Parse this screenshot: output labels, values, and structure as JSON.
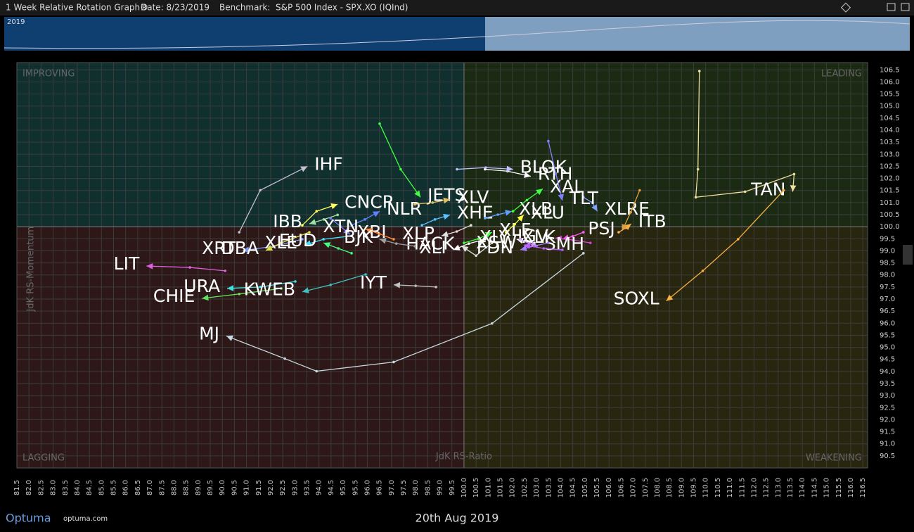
{
  "header": {
    "title": "1 Week Relative Rotation Graph®",
    "date": "Date: 8/23/2019",
    "benchmark": "Benchmark:  S&P 500 Index - SPX.XO (IQInd)",
    "timeline_label": "2019"
  },
  "footer": {
    "brand": "Optuma",
    "site": "optuma.com"
  },
  "chart_data": {
    "type": "rrg",
    "x_label": "JdK RS-Ratio",
    "y_label": "JdK RS-Momentum",
    "quadrants": {
      "top_left": "IMPROVING",
      "top_right": "LEADING",
      "bottom_left": "LAGGING",
      "bottom_right": "WEAKENING"
    },
    "date_label": "20th Aug 2019",
    "center": [
      100,
      100
    ],
    "xlim": [
      81.5,
      116.7
    ],
    "ylim": [
      90.0,
      106.8
    ],
    "grid": true,
    "xticks": [
      81.5,
      {
        "value": 82,
        "label": "82.0"
      },
      82.5,
      {
        "value": 83,
        "label": "83.0"
      },
      83.5,
      {
        "value": 84,
        "label": "84.0"
      },
      84.5,
      {
        "value": 85,
        "label": "85.0"
      },
      85.5,
      {
        "value": 86,
        "label": "86.0"
      },
      86.5,
      {
        "value": 87,
        "label": "87.0"
      },
      87.5,
      {
        "value": 88,
        "label": "88.0"
      },
      88.5,
      {
        "value": 89,
        "label": "89.0"
      },
      89.5,
      {
        "value": 90,
        "label": "90.0"
      },
      90.5,
      {
        "value": 91,
        "label": "91.0"
      },
      91.5,
      {
        "value": 92,
        "label": "92.0"
      },
      92.5,
      {
        "value": 93,
        "label": "93.0"
      },
      93.5,
      {
        "value": 94,
        "label": "94.0"
      },
      94.5,
      {
        "value": 95,
        "label": "95.0"
      },
      95.5,
      {
        "value": 96,
        "label": "96.0"
      },
      96.5,
      {
        "value": 97,
        "label": "97.0"
      },
      97.5,
      {
        "value": 98,
        "label": "98.0"
      },
      98.5,
      {
        "value": 99,
        "label": "99.0"
      },
      99.5,
      {
        "value": 100,
        "label": "100.0"
      },
      100.5,
      {
        "value": 101,
        "label": "101.0"
      },
      101.5,
      {
        "value": 102,
        "label": "102.0"
      },
      102.5,
      {
        "value": 103,
        "label": "103.0"
      },
      103.5,
      {
        "value": 104,
        "label": "104.0"
      },
      104.5,
      {
        "value": 105,
        "label": "105.0"
      },
      105.5,
      {
        "value": 106,
        "label": "106.0"
      },
      106.5,
      {
        "value": 107,
        "label": "107.0"
      },
      107.5,
      {
        "value": 108,
        "label": "108.0"
      },
      108.5,
      {
        "value": 109,
        "label": "109.0"
      },
      109.5,
      {
        "value": 110,
        "label": "110.0"
      },
      110.5,
      {
        "value": 111,
        "label": "111.0"
      },
      111.5,
      {
        "value": 112,
        "label": "112.0"
      },
      112.5,
      {
        "value": 113,
        "label": "113.0"
      },
      113.5,
      {
        "value": 114,
        "label": "114.0"
      },
      114.5,
      {
        "value": 115,
        "label": "115.0"
      },
      115.5,
      {
        "value": 116,
        "label": "116.0"
      },
      116.5
    ],
    "yticks": [
      90.5,
      {
        "value": 91,
        "label": "91.0"
      },
      91.5,
      {
        "value": 92,
        "label": "92.0"
      },
      92.5,
      {
        "value": 93,
        "label": "93.0"
      },
      93.5,
      {
        "value": 94,
        "label": "94.0"
      },
      94.5,
      {
        "value": 95,
        "label": "95.0"
      },
      95.5,
      {
        "value": 96,
        "label": "96.0"
      },
      96.5,
      {
        "value": 97,
        "label": "97.0"
      },
      97.5,
      {
        "value": 98,
        "label": "98.0"
      },
      98.5,
      {
        "value": 99,
        "label": "99.0"
      },
      99.5,
      {
        "value": 100,
        "label": "100.0"
      },
      100.5,
      {
        "value": 101,
        "label": "101.0"
      },
      101.5,
      {
        "value": 102,
        "label": "102.0"
      },
      102.5,
      {
        "value": 103,
        "label": "103.0"
      },
      103.5,
      {
        "value": 104,
        "label": "104.0"
      },
      104.5,
      {
        "value": 105,
        "label": "105.0"
      },
      105.5,
      {
        "value": 106,
        "label": "106.0"
      },
      106.5
    ],
    "series": [
      {
        "name": "TAN",
        "color": "#f0e0a0",
        "x": [
          109.74,
          109.68,
          109.59,
          111.63,
          113.66,
          113.6
        ],
        "y": [
          106.45,
          102.38,
          101.22,
          101.45,
          102.18,
          101.45
        ]
      },
      {
        "name": "SOXL",
        "color": "#f5b041",
        "x": [
          113.23,
          111.34,
          109.88,
          108.37
        ],
        "y": [
          101.51,
          99.48,
          98.17,
          96.92
        ]
      },
      {
        "name": "MJ",
        "color": "#c8d8e0",
        "x": [
          104.94,
          101.16,
          97.09,
          93.9,
          92.59,
          90.17
        ],
        "y": [
          98.9,
          95.99,
          94.39,
          94.01,
          94.53,
          95.47
        ]
      },
      {
        "name": "HACK",
        "color": "#e0e0e0",
        "x": [
          101.16,
          100.5,
          99.9
        ],
        "y": [
          99.33,
          98.8,
          99.2
        ]
      },
      {
        "name": "IHF",
        "color": "#c0c0d0",
        "x": [
          90.7,
          91.57,
          93.52
        ],
        "y": [
          99.77,
          101.51,
          102.5
        ]
      },
      {
        "name": "LIT",
        "color": "#e060e0",
        "x": [
          90.12,
          88.66,
          86.86
        ],
        "y": [
          98.17,
          98.31,
          98.37
        ]
      },
      {
        "name": "CHIE",
        "color": "#60e060",
        "x": [
          92.44,
          90.7,
          89.16
        ],
        "y": [
          97.44,
          97.21,
          97.03
        ]
      },
      {
        "name": "URA",
        "color": "#40e0e0",
        "x": [
          93.02,
          91.57,
          90.2
        ],
        "y": [
          97.73,
          97.5,
          97.44
        ]
      },
      {
        "name": "KWEB",
        "color": "#40c0c0",
        "x": [
          95.93,
          94.48,
          93.31
        ],
        "y": [
          98.02,
          97.59,
          97.3
        ]
      },
      {
        "name": "XRT",
        "color": "#80a0ff",
        "x": [
          93.31,
          92.15,
          90.84
        ],
        "y": [
          99.48,
          99.19,
          99.01
        ]
      },
      {
        "name": "DBA",
        "color": "#e0e040",
        "x": [
          93.6,
          92.44,
          91.8
        ],
        "y": [
          99.77,
          99.33,
          99.01
        ]
      },
      {
        "name": "XLE",
        "color": "#40e0ff",
        "x": [
          95.35,
          94.19,
          93.4
        ],
        "y": [
          99.62,
          99.48,
          99.24
        ]
      },
      {
        "name": "IBB",
        "color": "#a0e0a0",
        "x": [
          94.77,
          94.2,
          93.6
        ],
        "y": [
          100.49,
          100.3,
          100.12
        ]
      },
      {
        "name": "CNCR",
        "color": "#ffff60",
        "x": [
          93.31,
          93.9,
          94.77
        ],
        "y": [
          100.06,
          100.64,
          100.93
        ]
      },
      {
        "name": "XBI",
        "color": "#8080ff",
        "x": [
          94.48,
          94.9,
          95.29
        ],
        "y": [
          100.35,
          100.0,
          99.68
        ]
      },
      {
        "name": "NLR",
        "color": "#6080ff",
        "x": [
          95.35,
          95.9,
          96.51
        ],
        "y": [
          100.06,
          100.3,
          100.64
        ]
      },
      {
        "name": "EUD",
        "color": "#40ff80",
        "x": [
          95.35,
          94.8,
          94.19
        ],
        "y": [
          98.9,
          99.1,
          99.33
        ]
      },
      {
        "name": "XTN",
        "color": "#ff9040",
        "x": [
          97.09,
          96.5,
          95.93
        ],
        "y": [
          99.48,
          99.7,
          99.91
        ]
      },
      {
        "name": "BJK",
        "color": "#a0a0a0",
        "x": [
          97.97,
          97.2,
          96.51
        ],
        "y": [
          99.19,
          99.3,
          99.48
        ]
      },
      {
        "name": "IYT",
        "color": "#c0c0c0",
        "x": [
          98.84,
          98.0,
          97.09
        ],
        "y": [
          97.5,
          97.55,
          97.59
        ]
      },
      {
        "name": "JETS",
        "color": "#40ff40",
        "x": [
          96.51,
          97.38,
          98.2
        ],
        "y": [
          104.27,
          102.38,
          101.22
        ]
      },
      {
        "name": "XLV",
        "color": "#e0c060",
        "x": [
          97.97,
          98.7,
          99.42
        ],
        "y": [
          100.93,
          101.0,
          101.13
        ]
      },
      {
        "name": "XHE",
        "color": "#60c0ff",
        "x": [
          98.26,
          98.8,
          99.42
        ],
        "y": [
          100.06,
          100.3,
          100.49
        ]
      },
      {
        "name": "XLP",
        "color": "#e0e0e0",
        "x": [
          100.29,
          99.7,
          99.07
        ],
        "y": [
          100.06,
          99.8,
          99.62
        ]
      },
      {
        "name": "XLF",
        "color": "#40ff40",
        "x": [
          100.0,
          100.6,
          101.16
        ],
        "y": [
          99.33,
          99.5,
          99.77
        ]
      },
      {
        "name": "XLI",
        "color": "#ffffff",
        "x": [
          100.87,
          100.2,
          99.56
        ],
        "y": [
          99.48,
          99.3,
          99.04
        ]
      },
      {
        "name": "XLB",
        "color": "#60a0ff",
        "x": [
          100.87,
          101.4,
          101.98
        ],
        "y": [
          100.35,
          100.5,
          100.64
        ]
      },
      {
        "name": "RTH",
        "color": "#ffffff",
        "x": [
          100.87,
          101.8,
          102.76
        ],
        "y": [
          102.38,
          102.3,
          102.09
        ]
      },
      {
        "name": "BLOK",
        "color": "#c0c0ff",
        "x": [
          99.71,
          100.9,
          102.03
        ],
        "y": [
          102.38,
          102.45,
          102.38
        ]
      },
      {
        "name": "XAL",
        "color": "#40ff40",
        "x": [
          102.03,
          102.6,
          103.26
        ],
        "y": [
          100.64,
          101.1,
          101.57
        ]
      },
      {
        "name": "XLRE",
        "color": "#80a0ff",
        "x": [
          104.94,
          105.3,
          105.52
        ],
        "y": [
          101.22,
          101.0,
          100.64
        ]
      },
      {
        "name": "TLT",
        "color": "#8080ff",
        "x": [
          103.49,
          103.8,
          104.07
        ],
        "y": [
          103.55,
          102.2,
          101.08
        ]
      },
      {
        "name": "XLU",
        "color": "#ffff40",
        "x": [
          101.74,
          102.1,
          102.47
        ],
        "y": [
          99.77,
          100.1,
          100.49
        ]
      },
      {
        "name": "XLY",
        "color": "#ffffff",
        "x": [
          102.91,
          102.5,
          102.18
        ],
        "y": [
          99.33,
          99.4,
          99.48
        ]
      },
      {
        "name": "XLK",
        "color": "#ff60ff",
        "x": [
          104.94,
          104.5,
          104.07
        ],
        "y": [
          99.77,
          99.6,
          99.48
        ]
      },
      {
        "name": "IGV",
        "color": "#e040e0",
        "x": [
          105.23,
          104.5,
          103.78
        ],
        "y": [
          99.33,
          99.45,
          99.53
        ]
      },
      {
        "name": "ITB",
        "color": "#ffb040",
        "x": [
          106.4,
          106.7,
          106.92
        ],
        "y": [
          99.77,
          99.95,
          100.12
        ]
      },
      {
        "name": "PSJ",
        "color": "#e0a040",
        "x": [
          107.27,
          106.9,
          106.54
        ],
        "y": [
          101.51,
          100.6,
          99.83
        ]
      },
      {
        "name": "SMH",
        "color": "#d0a0ff",
        "x": [
          102.33,
          102.7,
          103.05
        ],
        "y": [
          99.48,
          99.3,
          99.19
        ]
      },
      {
        "name": "FDN",
        "color": "#a080ff",
        "x": [
          103.49,
          102.9,
          102.33
        ],
        "y": [
          99.33,
          99.2,
          99.04
        ]
      },
      {
        "name": "XSW",
        "color": "#c060ff",
        "x": [
          104.07,
          103.3,
          102.47
        ],
        "y": [
          99.04,
          99.1,
          99.24
        ]
      }
    ]
  }
}
